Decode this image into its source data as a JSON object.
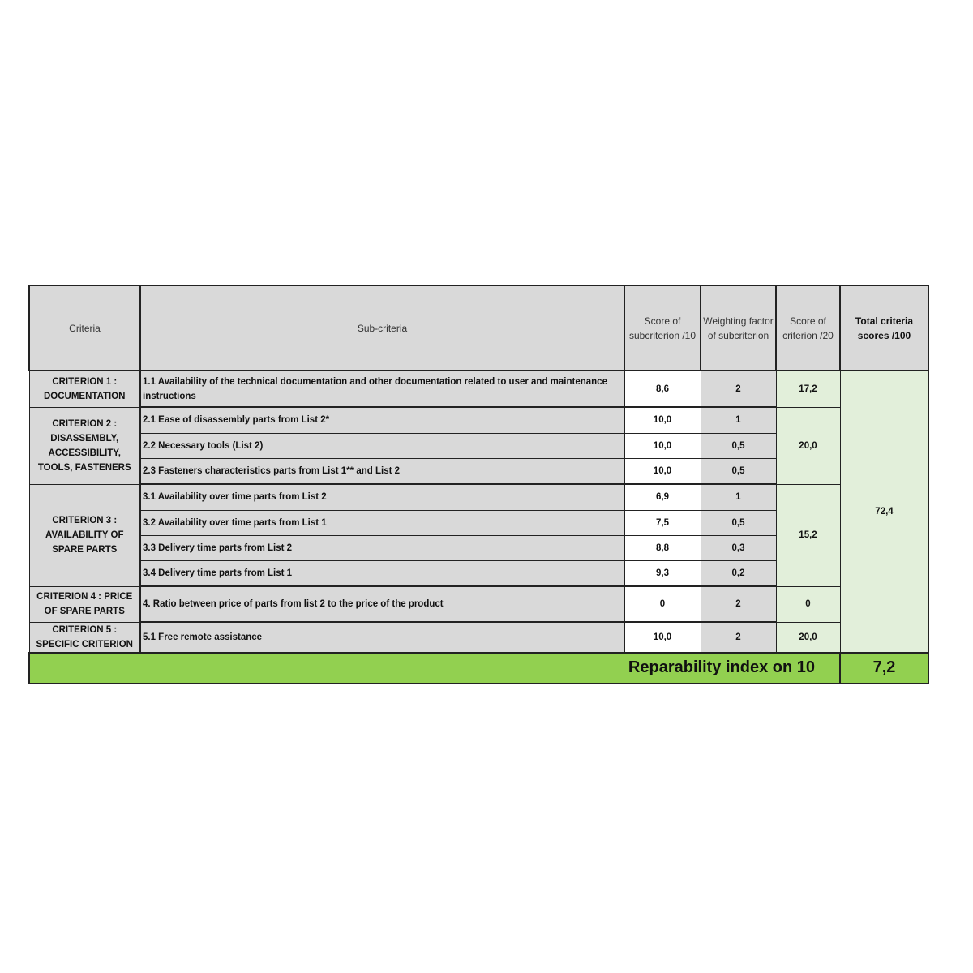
{
  "headers": {
    "criteria": "Criteria",
    "sub_criteria": "Sub-criteria",
    "score_sub": "Score of subcriterion /10",
    "weight": "Weighting factor of subcriterion",
    "score_crit": "Score of criterion /20",
    "total": "Total criteria scores /100"
  },
  "criteria": [
    {
      "name": "CRITERION 1 : DOCUMENTATION",
      "score": "17,2",
      "subs": [
        {
          "label": "1.1 Availability of the technical documentation and other documentation related to user and maintenance instructions",
          "score": "8,6",
          "weight": "2"
        }
      ]
    },
    {
      "name": "CRITERION 2 : DISASSEMBLY, ACCESSIBILITY, TOOLS, FASTENERS",
      "score": "20,0",
      "subs": [
        {
          "label": "2.1 Ease of disassembly parts from List 2*",
          "score": "10,0",
          "weight": "1"
        },
        {
          "label": "2.2 Necessary tools (List 2)",
          "score": "10,0",
          "weight": "0,5"
        },
        {
          "label": "2.3 Fasteners characteristics parts from List 1** and List 2",
          "score": "10,0",
          "weight": "0,5"
        }
      ]
    },
    {
      "name": "CRITERION 3 : AVAILABILITY OF SPARE PARTS",
      "score": "15,2",
      "subs": [
        {
          "label": "3.1 Availability over time parts from List 2",
          "score": "6,9",
          "weight": "1"
        },
        {
          "label": "3.2 Availability over time parts from List 1",
          "score": "7,5",
          "weight": "0,5"
        },
        {
          "label": "3.3 Delivery time parts from List 2",
          "score": "8,8",
          "weight": "0,3"
        },
        {
          "label": "3.4 Delivery time parts from List 1",
          "score": "9,3",
          "weight": "0,2"
        }
      ]
    },
    {
      "name": "CRITERION 4 : PRICE OF SPARE PARTS",
      "score": "0",
      "subs": [
        {
          "label": "4. Ratio between price of parts from list 2 to the price of the product",
          "score": "0",
          "weight": "2"
        }
      ]
    },
    {
      "name": "CRITERION 5 : SPECIFIC CRITERION",
      "score": "20,0",
      "subs": [
        {
          "label": "5.1 Free remote assistance",
          "score": "10,0",
          "weight": "2"
        }
      ]
    }
  ],
  "total_score": "72,4",
  "footer": {
    "label": "Reparability index on 10",
    "value": "7,2"
  },
  "colors": {
    "header_gray": "#d9d9d9",
    "light_green": "#e2efda",
    "footer_green": "#92d050"
  }
}
